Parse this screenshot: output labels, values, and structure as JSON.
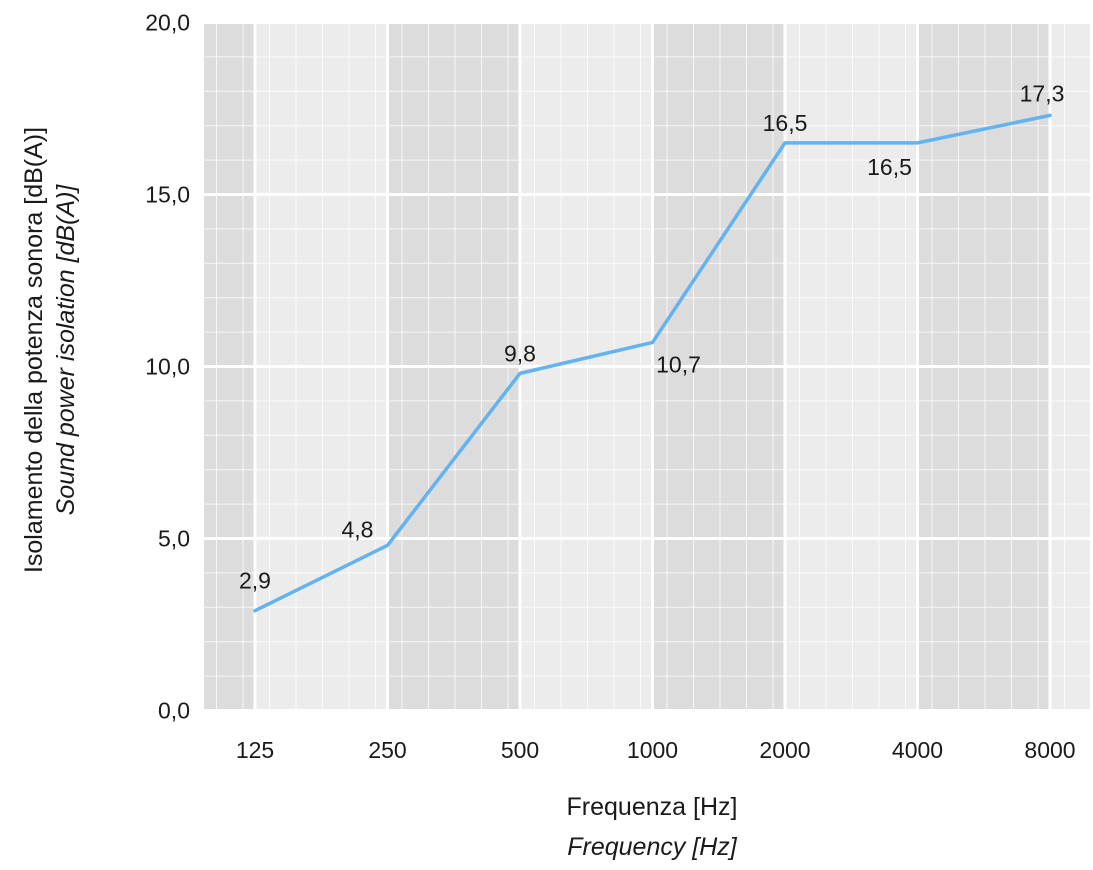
{
  "chart_data": {
    "type": "line",
    "categories": [
      "125",
      "250",
      "500",
      "1000",
      "2000",
      "4000",
      "8000"
    ],
    "series": [
      {
        "values": [
          2.9,
          4.8,
          9.8,
          10.7,
          16.5,
          16.5,
          17.3
        ],
        "value_labels": [
          "2,9",
          "4,8",
          "9,8",
          "10,7",
          "16,5",
          "16,5",
          "17,3"
        ],
        "color": "#63b3ee"
      }
    ],
    "xlabel": "Frequenza [Hz]",
    "xlabel_en": "Frequency [Hz]",
    "ylabel": "Isolamento della potenza sonora [dB(A)]",
    "ylabel_en": "Sound power isolation [dB(A)]",
    "ylim": [
      0,
      20
    ],
    "yticks": [
      0,
      5,
      10,
      15,
      20
    ],
    "ytick_labels": [
      "0,0",
      "5,0",
      "10,0",
      "15,0",
      "20,0"
    ],
    "grid": true,
    "band_colors": [
      "#dcdcdc",
      "#ececec"
    ],
    "line_color": "#63b3ee"
  }
}
